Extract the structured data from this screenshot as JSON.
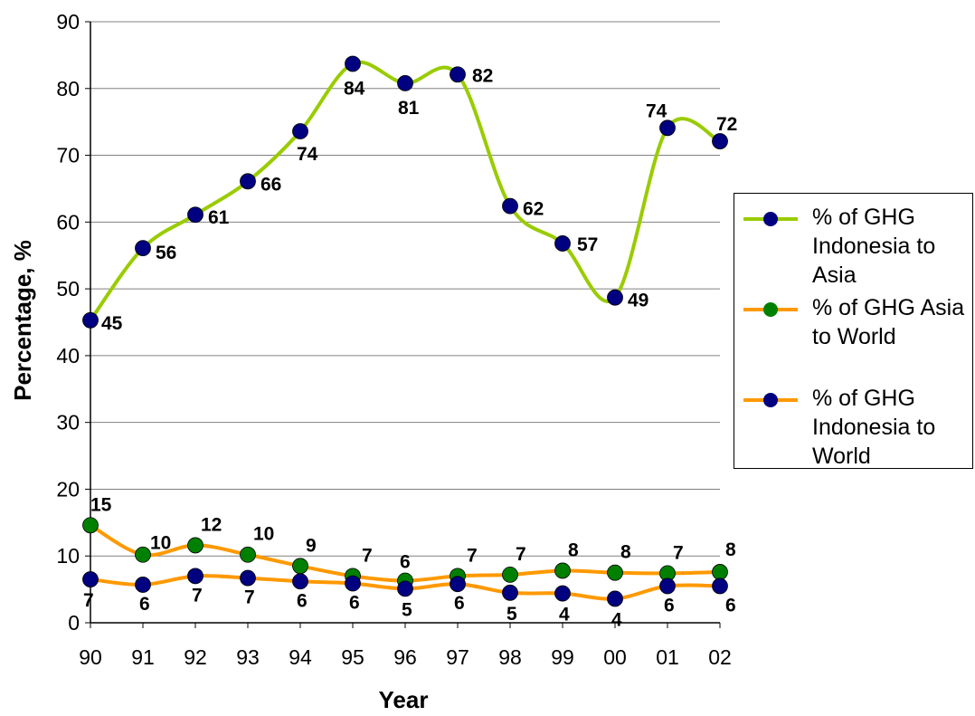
{
  "chart_data": {
    "type": "line",
    "title": "",
    "xlabel": "Year",
    "ylabel": "Percentage, %",
    "categories": [
      "90",
      "91",
      "92",
      "93",
      "94",
      "95",
      "96",
      "97",
      "98",
      "99",
      "00",
      "01",
      "02"
    ],
    "yticks": [
      "0",
      "10",
      "20",
      "30",
      "40",
      "50",
      "60",
      "70",
      "80",
      "90"
    ],
    "ylim": [
      0,
      90
    ],
    "grid": true,
    "legend_position": "right",
    "series": [
      {
        "name": "% of GHG Indonesia to Asia",
        "line_color": "#99cc00",
        "marker_color": "#000080",
        "values": [
          45.3,
          56.1,
          61.1,
          66.1,
          73.6,
          83.7,
          80.8,
          82.1,
          62.4,
          56.8,
          48.7,
          74.1,
          72.1
        ],
        "labels": [
          "45",
          "56",
          "61",
          "66",
          "74",
          "84",
          "81",
          "82",
          "62",
          "57",
          "49",
          "74",
          "72"
        ]
      },
      {
        "name": "% of GHG Asia to World",
        "line_color": "#ff9900",
        "marker_color": "#008000",
        "values": [
          14.6,
          10.2,
          11.6,
          10.2,
          8.5,
          7.0,
          6.3,
          7.0,
          7.2,
          7.8,
          7.5,
          7.4,
          7.6
        ],
        "labels": [
          "15",
          "10",
          "12",
          "10",
          "9",
          "7",
          "6",
          "7",
          "7",
          "8",
          "8",
          "7",
          "8"
        ]
      },
      {
        "name": "% of GHG Indonesia to World",
        "line_color": "#ff9900",
        "marker_color": "#000080",
        "values": [
          6.5,
          5.7,
          7.0,
          6.7,
          6.2,
          5.9,
          5.1,
          5.8,
          4.5,
          4.4,
          3.6,
          5.5,
          5.5
        ],
        "labels": [
          "7",
          "6",
          "7",
          "7",
          "6",
          "6",
          "5",
          "6",
          "5",
          "4",
          "4",
          "6",
          "6"
        ]
      }
    ]
  }
}
